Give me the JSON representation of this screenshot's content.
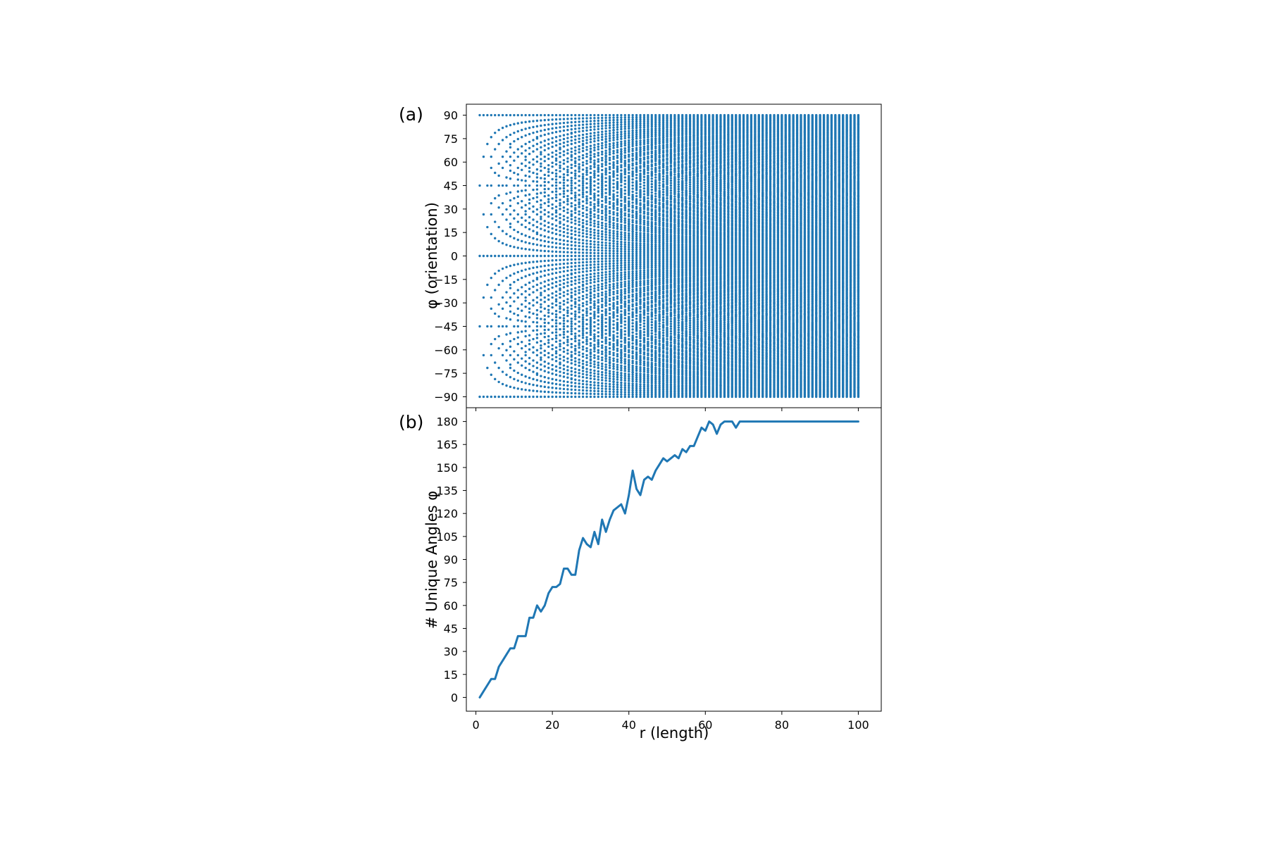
{
  "chart_data": [
    {
      "type": "scatter",
      "panel_label": "(a)",
      "ylabel": "φ (orientation)",
      "xlabel": "",
      "xlim": [
        -2.5,
        106
      ],
      "ylim": [
        -97,
        97
      ],
      "x_ticks": [
        0,
        20,
        40,
        60,
        80,
        100
      ],
      "x_tick_labels_shown": false,
      "y_ticks": [
        90,
        75,
        60,
        45,
        30,
        15,
        0,
        -15,
        -30,
        -45,
        -60,
        -75,
        -90
      ],
      "y_tick_labels": [
        "90",
        "75",
        "60",
        "45",
        "30",
        "15",
        "0",
        "−15",
        "−30",
        "−45",
        "−60",
        "−75",
        "−90"
      ],
      "series_rule": "for each integer length r = 1..100, one point per unique orientation angle φ = atan2(dy, dx) (degrees, in [-90, 90]) over all integer displacements (dx, dy) with round(hypot(dx, dy)) = r",
      "r_range": [
        1,
        100
      ],
      "color": "#1f77b4",
      "grid": false
    },
    {
      "type": "line",
      "panel_label": "(b)",
      "ylabel": "# Unique Angles φ",
      "xlabel": "r (length)",
      "xlim": [
        -2.5,
        106
      ],
      "ylim": [
        -9,
        189
      ],
      "x_ticks": [
        0,
        20,
        40,
        60,
        80,
        100
      ],
      "x_tick_labels": [
        "0",
        "20",
        "40",
        "60",
        "80",
        "100"
      ],
      "y_ticks": [
        0,
        15,
        30,
        45,
        60,
        75,
        90,
        105,
        120,
        135,
        150,
        165,
        180
      ],
      "y_tick_labels": [
        "0",
        "15",
        "30",
        "45",
        "60",
        "75",
        "90",
        "105",
        "120",
        "135",
        "150",
        "165",
        "180"
      ],
      "x": [
        1,
        2,
        3,
        4,
        5,
        6,
        7,
        8,
        9,
        10,
        11,
        12,
        13,
        14,
        15,
        16,
        17,
        18,
        19,
        20,
        21,
        22,
        23,
        24,
        25,
        26,
        27,
        28,
        29,
        30,
        31,
        32,
        33,
        34,
        35,
        36,
        37,
        38,
        39,
        40,
        41,
        42,
        43,
        44,
        45,
        46,
        47,
        48,
        49,
        50,
        51,
        52,
        53,
        54,
        55,
        56,
        57,
        58,
        59,
        60,
        61,
        62,
        63,
        64,
        65,
        66,
        67,
        68,
        69,
        70,
        71,
        72,
        73,
        74,
        75,
        76,
        77,
        78,
        79,
        80,
        81,
        82,
        83,
        84,
        85,
        86,
        87,
        88,
        89,
        90,
        91,
        92,
        93,
        94,
        95,
        96,
        97,
        98,
        99,
        100
      ],
      "values": [
        0,
        4,
        8,
        12,
        12,
        20,
        24,
        28,
        32,
        32,
        40,
        40,
        40,
        52,
        52,
        60,
        56,
        60,
        68,
        72,
        72,
        74,
        84,
        84,
        80,
        80,
        96,
        104,
        100,
        98,
        108,
        100,
        116,
        108,
        116,
        122,
        124,
        126,
        120,
        132,
        148,
        136,
        132,
        142,
        144,
        142,
        148,
        152,
        156,
        154,
        156,
        158,
        156,
        162,
        160,
        164,
        164,
        170,
        176,
        174,
        180,
        178,
        172,
        178,
        180,
        180,
        180,
        176,
        180,
        180,
        180,
        180,
        180,
        180,
        180,
        180,
        180,
        180,
        180,
        180,
        180,
        180,
        180,
        180,
        180,
        180,
        180,
        180,
        180,
        180,
        180,
        180,
        180,
        180,
        180,
        180,
        180,
        180,
        180,
        180
      ],
      "color": "#1f77b4",
      "grid": false
    }
  ]
}
